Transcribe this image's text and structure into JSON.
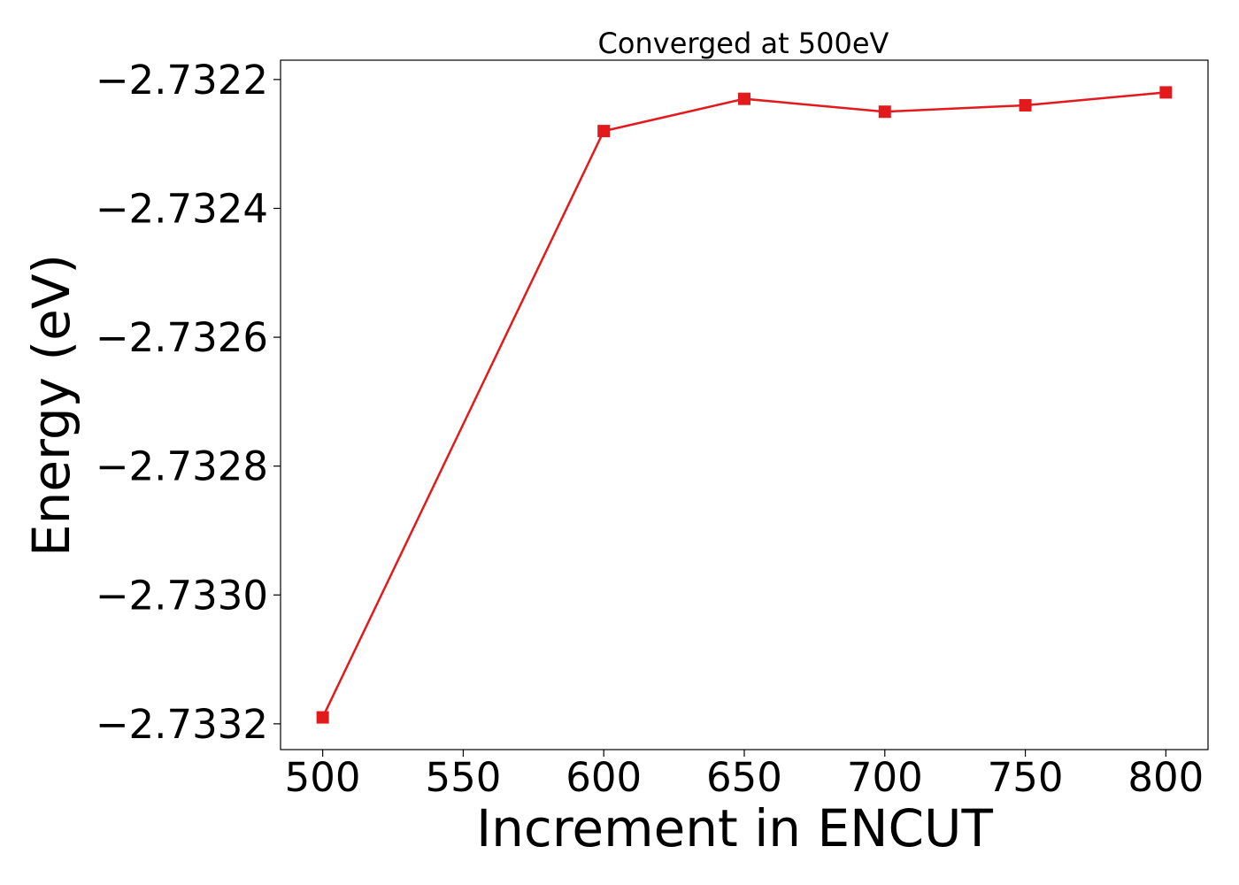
{
  "chart_data": {
    "type": "line",
    "title": "Converged at 500eV",
    "xlabel": "Increment in ENCUT",
    "ylabel": "Energy (eV)",
    "x": [
      500,
      600,
      650,
      700,
      750,
      800
    ],
    "series": [
      {
        "values": [
          -2.73319,
          -2.73228,
          -2.73223,
          -2.73225,
          -2.73224,
          -2.73222
        ],
        "color": "#e31a1c",
        "marker": "square"
      }
    ],
    "xlim": [
      485,
      815
    ],
    "ylim": [
      -2.73324,
      -2.73217
    ],
    "xticks": [
      500,
      550,
      600,
      650,
      700,
      750,
      800
    ],
    "xtick_labels": [
      "500",
      "550",
      "600",
      "650",
      "700",
      "750",
      "800"
    ],
    "yticks": [
      -2.7322,
      -2.7324,
      -2.7326,
      -2.7328,
      -2.733,
      -2.7332
    ],
    "ytick_labels": [
      "−2.7322",
      "−2.7324",
      "−2.7326",
      "−2.7328",
      "−2.7330",
      "−2.7332"
    ],
    "grid": false,
    "legend": false
  }
}
